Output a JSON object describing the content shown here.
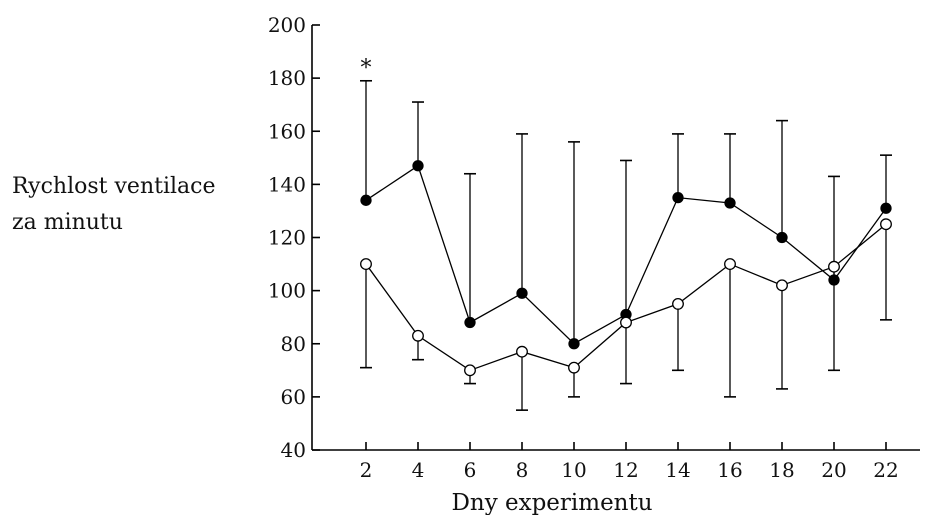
{
  "chart_data": {
    "type": "line",
    "title": "",
    "ylabel_lines": [
      "Rychlost ventilace",
      "za minutu"
    ],
    "xlabel": "Dny experimentu",
    "x": [
      2,
      4,
      6,
      8,
      10,
      12,
      14,
      16,
      18,
      20,
      22
    ],
    "xlim": [
      0,
      23
    ],
    "ylim": [
      40,
      200
    ],
    "yticks": [
      40,
      60,
      80,
      100,
      120,
      140,
      160,
      180,
      200
    ],
    "grid": false,
    "legend": "none",
    "series": [
      {
        "marker": "filled",
        "color": "#000000",
        "values": [
          134,
          147,
          88,
          99,
          80,
          91,
          135,
          133,
          120,
          104,
          131
        ],
        "error_direction": "up",
        "error_ends": [
          179,
          171,
          144,
          159,
          156,
          149,
          159,
          159,
          164,
          143,
          151
        ]
      },
      {
        "marker": "open",
        "color": "#000000",
        "values": [
          110,
          83,
          70,
          77,
          71,
          88,
          95,
          110,
          102,
          109,
          125
        ],
        "error_direction": "down",
        "error_ends": [
          71,
          74,
          65,
          55,
          60,
          65,
          70,
          60,
          63,
          70,
          89
        ]
      }
    ],
    "annotations": [
      {
        "text": "*",
        "x": 2,
        "y": 179
      }
    ]
  }
}
